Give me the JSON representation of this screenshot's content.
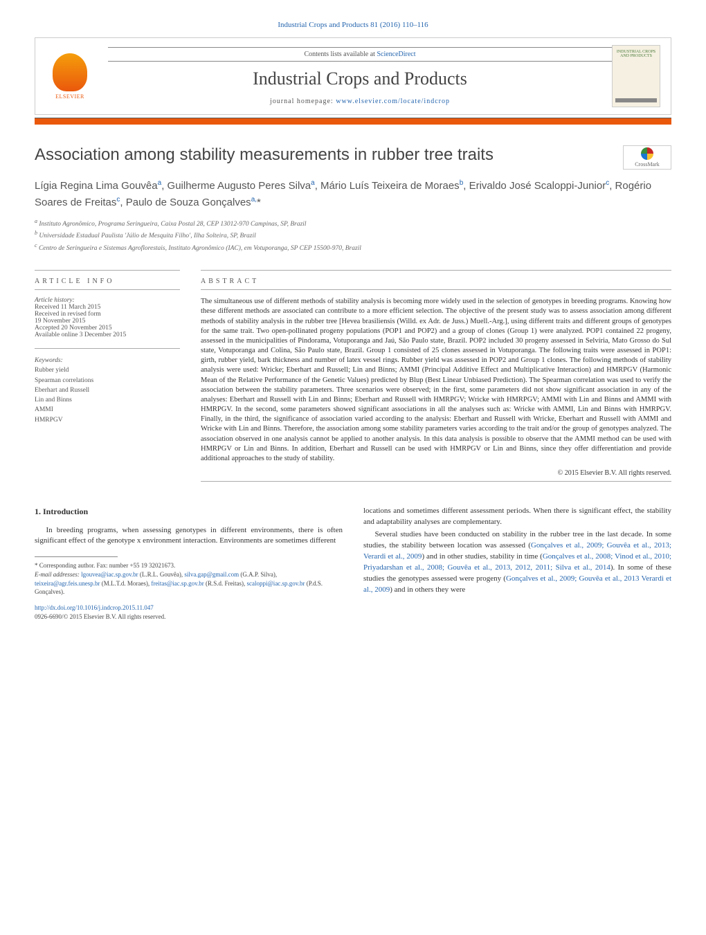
{
  "journal_ref": "Industrial Crops and Products 81 (2016) 110–116",
  "header": {
    "contents_prefix": "Contents lists available at ",
    "contents_link": "ScienceDirect",
    "journal_name": "Industrial Crops and Products",
    "homepage_prefix": "journal homepage: ",
    "homepage_link": "www.elsevier.com/locate/indcrop",
    "elsevier_label": "ELSEVIER",
    "cover_text": "INDUSTRIAL CROPS AND PRODUCTS"
  },
  "crossmark_label": "CrossMark",
  "title": "Association among stability measurements in rubber tree traits",
  "authors_html": "Lígia Regina Lima Gouvêa<sup>a</sup>, Guilherme Augusto Peres Silva<sup>a</sup>, Mário Luís Teixeira de Moraes<sup>b</sup>, Erivaldo José Scaloppi-Junior<sup>c</sup>, Rogério Soares de Freitas<sup>c</sup>, Paulo de Souza Gonçalves<sup>a,</sup>*",
  "affiliations": [
    "a Instituto Agronômico, Programa Seringueira, Caixa Postal 28, CEP 13012-970 Campinas, SP, Brazil",
    "b Universidade Estadual Paulista 'Júlio de Mesquita Filho', Ilha Solteira, SP, Brazil",
    "c Centro de Seringueira e Sistemas Agroflorestais, Instituto Agronômico (IAC), em Votuporanga, SP CEP 15500-970, Brazil"
  ],
  "article_info": {
    "heading": "article info",
    "history_label": "Article history:",
    "history": [
      "Received 11 March 2015",
      "Received in revised form",
      "19 November 2015",
      "Accepted 20 November 2015",
      "Available online 3 December 2015"
    ],
    "keywords_label": "Keywords:",
    "keywords": [
      "Rubber yield",
      "Spearman correlations",
      "Eberhart and Russell",
      "Lin and Binns",
      "AMMI",
      "HMRPGV"
    ]
  },
  "abstract": {
    "heading": "abstract",
    "text": "The simultaneous use of different methods of stability analysis is becoming more widely used in the selection of genotypes in breeding programs. Knowing how these different methods are associated can contribute to a more efficient selection. The objective of the present study was to assess association among different methods of stability analysis in the rubber tree [Hevea brasiliensis (Willd. ex Adr. de Juss.) Muell.-Arg.], using different traits and different groups of genotypes for the same trait. Two open-pollinated progeny populations (POP1 and POP2) and a group of clones (Group 1) were analyzed. POP1 contained 22 progeny, assessed in the municipalities of Pindorama, Votuporanga and Jaú, São Paulo state, Brazil. POP2 included 30 progeny assessed in Selvíria, Mato Grosso do Sul state, Votuporanga and Colina, São Paulo state, Brazil. Group 1 consisted of 25 clones assessed in Votuporanga. The following traits were assessed in POP1: girth, rubber yield, bark thickness and number of latex vessel rings. Rubber yield was assessed in POP2 and Group 1 clones. The following methods of stability analysis were used: Wricke; Eberhart and Russell; Lin and Binns; AMMI (Principal Additive Effect and Multiplicative Interaction) and HMRPGV (Harmonic Mean of the Relative Performance of the Genetic Values) predicted by Blup (Best Linear Unbiased Prediction). The Spearman correlation was used to verify the association between the stability parameters. Three scenarios were observed; in the first, some parameters did not show significant association in any of the analyses: Eberhart and Russell with Lin and Binns; Eberhart and Russell with HMRPGV; Wricke with HMRPGV; AMMI with Lin and Binns and AMMI with HMRPGV. In the second, some parameters showed significant associations in all the analyses such as: Wricke with AMMI, Lin and Binns with HMRPGV. Finally, in the third, the significance of association varied according to the analysis: Eberhart and Russell with Wricke, Eberhart and Russell with AMMI and Wricke with Lin and Binns. Therefore, the association among some stability parameters varies according to the trait and/or the group of genotypes analyzed. The association observed in one analysis cannot be applied to another analysis. In this data analysis is possible to observe that the AMMI method can be used with HMRPGV or Lin and Binns. In addition, Eberhart and Russell can be used with HMRPGV or Lin and Binns, since they offer differentiation and provide additional approaches to the study of stability.",
    "copyright": "© 2015 Elsevier B.V. All rights reserved."
  },
  "introduction": {
    "heading": "1. Introduction",
    "p1": "In breeding programs, when assessing genotypes in different environments, there is often significant effect of the genotype x environment interaction. Environments are sometimes different",
    "p2": "locations and sometimes different assessment periods. When there is significant effect, the stability and adaptability analyses are complementary.",
    "p3_pre": "Several studies have been conducted on stability in the rubber tree in the last decade. In some studies, the stability between location was assessed (",
    "p3_link1": "Gonçalves et al., 2009; Gouvêa et al., 2013; Verardi et al., 2009",
    "p3_mid1": ") and in other studies, stability in time (",
    "p3_link2": "Gonçalves et al., 2008; Vinod et al., 2010; Priyadarshan et al., 2008; Gouvêa et al., 2013, 2012, 2011; Silva et al., 2014",
    "p3_mid2": "). In some of these studies the genotypes assessed were progeny (",
    "p3_link3": "Gonçalves et al., 2009; Gouvêa et al., 2013 Verardi et al., 2009",
    "p3_end": ") and in others they were"
  },
  "footnotes": {
    "corr": "* Corresponding author. Fax: number +55 19 32021673.",
    "email_label": "E-mail addresses: ",
    "emails": [
      {
        "addr": "lgouvea@iac.sp.gov.br",
        "who": "(L.R.L. Gouvêa)"
      },
      {
        "addr": "silva.gap@gmail.com",
        "who": "(G.A.P. Silva)"
      },
      {
        "addr": "teixeira@agr.feis.unesp.br",
        "who": "(M.L.T.d. Moraes)"
      },
      {
        "addr": "freitas@iac.sp.gov.br",
        "who": "(R.S.d. Freitas)"
      },
      {
        "addr": "scaloppi@iac.sp.gov.br",
        "who": "(P.d.S. Gonçalves)"
      }
    ]
  },
  "footer": {
    "doi": "http://dx.doi.org/10.1016/j.indcrop.2015.11.047",
    "issn_copyright": "0926-6690/© 2015 Elsevier B.V. All rights reserved."
  },
  "colors": {
    "link": "#2565ae",
    "accent": "#ea580c"
  }
}
